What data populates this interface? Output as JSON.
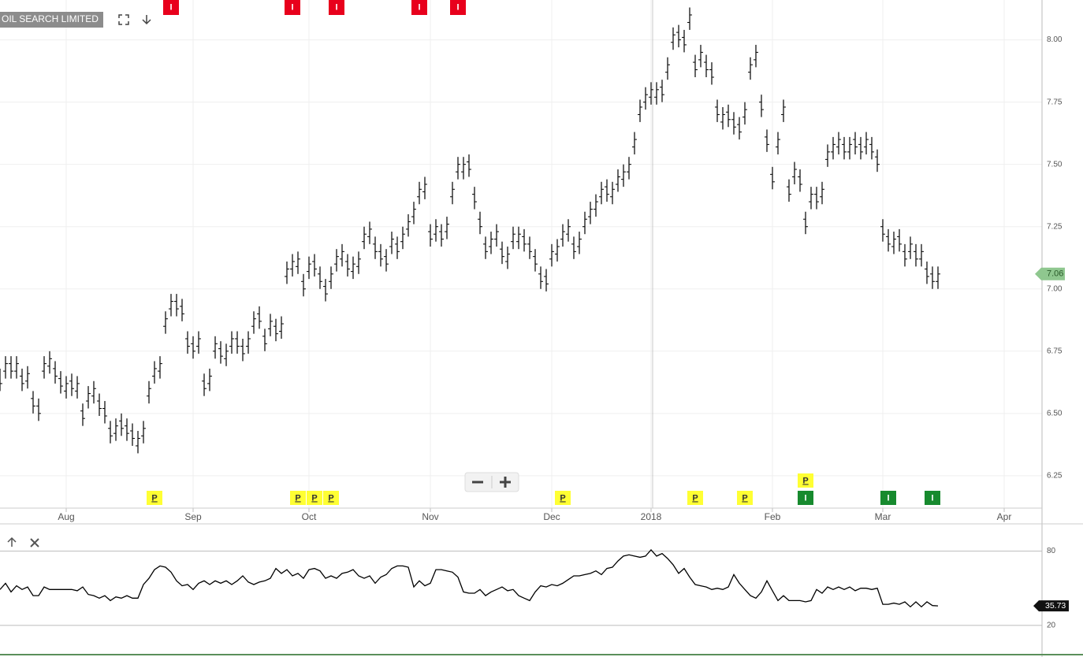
{
  "chart_data": [
    {
      "type": "ohlc",
      "title": "OIL SEARCH LIMITED",
      "color": "#000000",
      "grid": true,
      "xlim": [
        0,
        189
      ],
      "ylim": [
        6.12,
        8.16
      ],
      "xticks": [
        {
          "value": 12,
          "label": "Aug"
        },
        {
          "value": 35,
          "label": "Sep"
        },
        {
          "value": 56,
          "label": "Oct"
        },
        {
          "value": 78,
          "label": "Nov"
        },
        {
          "value": 100,
          "label": "Dec"
        },
        {
          "value": 118,
          "label": "2018"
        },
        {
          "value": 140,
          "label": "Feb"
        },
        {
          "value": 160,
          "label": "Mar"
        },
        {
          "value": 182,
          "label": "Apr"
        }
      ],
      "yticks": [
        6.25,
        {
          "value": 6.5,
          "label": "6.50"
        },
        6.75,
        {
          "value": 7,
          "label": "7.00"
        },
        7.25,
        {
          "value": 7.5,
          "label": "7.50"
        },
        7.75,
        {
          "value": 8,
          "label": "8.00"
        }
      ],
      "open": [
        6.65,
        6.67,
        6.7,
        6.67,
        6.65,
        6.63,
        6.56,
        6.53,
        6.67,
        6.69,
        6.68,
        6.64,
        6.59,
        6.63,
        6.59,
        6.51,
        6.55,
        6.57,
        6.55,
        6.52,
        6.44,
        6.42,
        6.47,
        6.45,
        6.43,
        6.37,
        6.41,
        6.57,
        6.65,
        6.67,
        6.85,
        6.92,
        6.95,
        6.93,
        6.8,
        6.78,
        6.77,
        6.63,
        6.62,
        6.75,
        6.76,
        6.72,
        6.77,
        6.8,
        6.77,
        6.77,
        6.85,
        6.9,
        6.81,
        6.84,
        6.85,
        6.83,
        7.05,
        7.08,
        7.09,
        7.03,
        7.07,
        7.11,
        7.06,
        7.01,
        7.03,
        7.1,
        7.12,
        7.11,
        7.07,
        7.09,
        7.19,
        7.21,
        7.18,
        7.15,
        7.13,
        7.17,
        7.18,
        7.19,
        7.24,
        7.29,
        7.37,
        7.39,
        7.23,
        7.22,
        7.23,
        7.23,
        7.37,
        7.47,
        7.47,
        7.51,
        7.38,
        7.28,
        7.18,
        7.17,
        7.2,
        7.16,
        7.11,
        7.19,
        7.19,
        7.21,
        7.18,
        7.13,
        7.06,
        7.05,
        7.12,
        7.14,
        7.2,
        7.22,
        7.18,
        7.17,
        7.25,
        7.29,
        7.32,
        7.37,
        7.41,
        7.37,
        7.42,
        7.44,
        7.47,
        7.57,
        7.7,
        7.75,
        7.77,
        7.77,
        7.81,
        7.87,
        7.99,
        8.03,
        8.01,
        8.07,
        7.91,
        7.92,
        7.91,
        7.88,
        7.73,
        7.67,
        7.71,
        7.68,
        7.66,
        7.69,
        7.87,
        7.92,
        7.75,
        7.61,
        7.46,
        7.57,
        7.7,
        7.41,
        7.45,
        7.45,
        7.28,
        7.35,
        7.38,
        7.37,
        7.52,
        7.55,
        7.57,
        7.58,
        7.55,
        7.6,
        7.58,
        7.57,
        7.58,
        7.53,
        7.25,
        7.21,
        7.17,
        7.21,
        7.15,
        7.15,
        7.15,
        7.12,
        7.08,
        7.06,
        7.03
      ],
      "high": [
        6.68,
        6.73,
        6.73,
        6.73,
        6.68,
        6.69,
        6.59,
        6.56,
        6.73,
        6.75,
        6.71,
        6.67,
        6.65,
        6.66,
        6.65,
        6.54,
        6.61,
        6.63,
        6.58,
        6.55,
        6.47,
        6.48,
        6.5,
        6.48,
        6.46,
        6.43,
        6.47,
        6.63,
        6.71,
        6.73,
        6.91,
        6.98,
        6.98,
        6.96,
        6.83,
        6.81,
        6.83,
        6.66,
        6.68,
        6.81,
        6.79,
        6.78,
        6.83,
        6.83,
        6.8,
        6.83,
        6.91,
        6.93,
        6.84,
        6.9,
        6.88,
        6.89,
        7.11,
        7.14,
        7.15,
        7.06,
        7.13,
        7.14,
        7.09,
        7.04,
        7.09,
        7.16,
        7.18,
        7.14,
        7.13,
        7.15,
        7.25,
        7.27,
        7.21,
        7.18,
        7.16,
        7.23,
        7.21,
        7.25,
        7.3,
        7.35,
        7.43,
        7.45,
        7.26,
        7.28,
        7.26,
        7.29,
        7.43,
        7.53,
        7.53,
        7.54,
        7.41,
        7.31,
        7.21,
        7.23,
        7.26,
        7.19,
        7.17,
        7.25,
        7.25,
        7.24,
        7.21,
        7.16,
        7.09,
        7.08,
        7.18,
        7.2,
        7.26,
        7.28,
        7.21,
        7.23,
        7.31,
        7.35,
        7.38,
        7.43,
        7.44,
        7.43,
        7.48,
        7.5,
        7.53,
        7.63,
        7.76,
        7.81,
        7.83,
        7.83,
        7.84,
        7.93,
        8.05,
        8.06,
        8.04,
        8.13,
        7.94,
        7.98,
        7.94,
        7.91,
        7.76,
        7.73,
        7.74,
        7.71,
        7.69,
        7.75,
        7.93,
        7.98,
        7.78,
        7.64,
        7.49,
        7.63,
        7.76,
        7.44,
        7.51,
        7.48,
        7.31,
        7.41,
        7.41,
        7.43,
        7.58,
        7.61,
        7.63,
        7.61,
        7.61,
        7.63,
        7.61,
        7.63,
        7.61,
        7.56,
        7.28,
        7.24,
        7.23,
        7.24,
        7.18,
        7.21,
        7.18,
        7.18,
        7.11,
        7.09,
        7.09
      ],
      "low": [
        6.59,
        6.64,
        6.64,
        6.64,
        6.59,
        6.6,
        6.5,
        6.47,
        6.64,
        6.66,
        6.62,
        6.58,
        6.56,
        6.57,
        6.56,
        6.45,
        6.52,
        6.54,
        6.49,
        6.46,
        6.38,
        6.39,
        6.41,
        6.39,
        6.37,
        6.34,
        6.38,
        6.54,
        6.62,
        6.64,
        6.82,
        6.89,
        6.89,
        6.87,
        6.74,
        6.72,
        6.74,
        6.57,
        6.59,
        6.72,
        6.7,
        6.69,
        6.74,
        6.74,
        6.71,
        6.74,
        6.82,
        6.84,
        6.75,
        6.81,
        6.79,
        6.8,
        7.02,
        7.05,
        7.06,
        6.97,
        7.04,
        7.05,
        7.0,
        6.95,
        7.0,
        7.07,
        7.09,
        7.05,
        7.04,
        7.06,
        7.16,
        7.18,
        7.12,
        7.09,
        7.07,
        7.14,
        7.12,
        7.16,
        7.21,
        7.26,
        7.34,
        7.36,
        7.17,
        7.19,
        7.17,
        7.2,
        7.34,
        7.44,
        7.44,
        7.45,
        7.32,
        7.22,
        7.12,
        7.14,
        7.17,
        7.1,
        7.08,
        7.16,
        7.16,
        7.15,
        7.12,
        7.07,
        7.0,
        6.99,
        7.09,
        7.11,
        7.17,
        7.19,
        7.12,
        7.14,
        7.22,
        7.26,
        7.29,
        7.34,
        7.35,
        7.34,
        7.39,
        7.41,
        7.44,
        7.54,
        7.67,
        7.72,
        7.74,
        7.74,
        7.75,
        7.84,
        7.96,
        7.97,
        7.95,
        8.04,
        7.85,
        7.89,
        7.85,
        7.82,
        7.67,
        7.64,
        7.65,
        7.62,
        7.6,
        7.66,
        7.84,
        7.89,
        7.69,
        7.55,
        7.4,
        7.54,
        7.67,
        7.35,
        7.42,
        7.39,
        7.22,
        7.32,
        7.32,
        7.34,
        7.49,
        7.52,
        7.54,
        7.52,
        7.52,
        7.54,
        7.52,
        7.54,
        7.52,
        7.47,
        7.19,
        7.15,
        7.14,
        7.15,
        7.09,
        7.12,
        7.09,
        7.09,
        7.02,
        7.0,
        7.0
      ],
      "close": [
        6.62,
        6.7,
        6.67,
        6.7,
        6.62,
        6.66,
        6.53,
        6.5,
        6.7,
        6.72,
        6.65,
        6.61,
        6.62,
        6.6,
        6.62,
        6.48,
        6.58,
        6.6,
        6.52,
        6.49,
        6.41,
        6.45,
        6.44,
        6.42,
        6.4,
        6.4,
        6.44,
        6.6,
        6.68,
        6.7,
        6.88,
        6.95,
        6.92,
        6.9,
        6.77,
        6.75,
        6.8,
        6.6,
        6.65,
        6.78,
        6.73,
        6.75,
        6.8,
        6.77,
        6.74,
        6.8,
        6.88,
        6.87,
        6.78,
        6.87,
        6.82,
        6.86,
        7.08,
        7.11,
        7.12,
        7.0,
        7.1,
        7.08,
        7.03,
        6.98,
        7.06,
        7.13,
        7.15,
        7.08,
        7.1,
        7.12,
        7.22,
        7.24,
        7.15,
        7.12,
        7.1,
        7.2,
        7.15,
        7.22,
        7.27,
        7.32,
        7.4,
        7.42,
        7.2,
        7.25,
        7.2,
        7.26,
        7.4,
        7.5,
        7.5,
        7.48,
        7.35,
        7.25,
        7.15,
        7.2,
        7.23,
        7.13,
        7.14,
        7.22,
        7.22,
        7.18,
        7.15,
        7.1,
        7.03,
        7.02,
        7.15,
        7.17,
        7.23,
        7.25,
        7.15,
        7.2,
        7.28,
        7.32,
        7.35,
        7.4,
        7.38,
        7.4,
        7.45,
        7.47,
        7.5,
        7.6,
        7.73,
        7.78,
        7.8,
        7.8,
        7.78,
        7.9,
        8.02,
        8.0,
        7.98,
        8.1,
        7.88,
        7.95,
        7.88,
        7.85,
        7.7,
        7.7,
        7.68,
        7.65,
        7.63,
        7.72,
        7.9,
        7.95,
        7.72,
        7.58,
        7.43,
        7.6,
        7.73,
        7.38,
        7.48,
        7.42,
        7.25,
        7.38,
        7.35,
        7.4,
        7.55,
        7.58,
        7.6,
        7.55,
        7.58,
        7.57,
        7.55,
        7.6,
        7.55,
        7.5,
        7.22,
        7.18,
        7.2,
        7.18,
        7.12,
        7.18,
        7.12,
        7.15,
        7.05,
        7.03,
        7.06
      ],
      "last_color": "#8fc78f",
      "events": [
        {
          "label": "I",
          "x": 31,
          "color": "#e8001c"
        },
        {
          "label": "I",
          "x": 53,
          "color": "#e8001c"
        },
        {
          "label": "I",
          "x": 61,
          "color": "#e8001c"
        },
        {
          "label": "I",
          "x": 76,
          "color": "#e8001c"
        },
        {
          "label": "I",
          "x": 83,
          "color": "#e8001c"
        },
        {
          "label": "P",
          "x": 28,
          "color": "#ffff33"
        },
        {
          "label": "P",
          "x": 54,
          "color": "#ffff33"
        },
        {
          "label": "P",
          "x": 57,
          "color": "#ffff33"
        },
        {
          "label": "P",
          "x": 60,
          "color": "#ffff33"
        },
        {
          "label": "P",
          "x": 102,
          "color": "#ffff33"
        },
        {
          "label": "P",
          "x": 126,
          "color": "#ffff33"
        },
        {
          "label": "P",
          "x": 135,
          "color": "#ffff33"
        },
        {
          "label": "I",
          "x": 146,
          "color": "#178a2e"
        },
        {
          "label": "P",
          "x": 146,
          "color": "#ffff33"
        },
        {
          "label": "I",
          "x": 161,
          "color": "#178a2e"
        },
        {
          "label": "I",
          "x": 169,
          "color": "#178a2e"
        }
      ]
    },
    {
      "type": "line",
      "color": "#000000",
      "xlim": [
        0,
        189
      ],
      "ylim": [
        -3,
        102
      ],
      "yticks": [
        20,
        80
      ],
      "values": [
        49,
        54,
        47,
        52,
        49,
        51,
        44,
        44,
        51,
        49,
        49,
        49,
        49,
        49,
        48,
        51,
        45,
        44,
        42,
        44,
        40,
        43,
        42,
        44,
        42,
        42,
        53,
        58,
        65,
        68,
        67,
        63,
        56,
        52,
        53,
        49,
        54,
        56,
        53,
        56,
        54,
        56,
        53,
        56,
        60,
        55,
        53,
        55,
        56,
        58,
        66,
        62,
        65,
        60,
        62,
        58,
        65,
        66,
        64,
        58,
        60,
        58,
        62,
        63,
        65,
        60,
        58,
        60,
        54,
        59,
        61,
        66,
        68,
        68,
        67,
        51,
        56,
        52,
        54,
        65,
        65,
        64,
        63,
        59,
        47,
        46,
        46,
        49,
        44,
        47,
        49,
        51,
        48,
        49,
        44,
        42,
        40,
        47,
        52,
        51,
        53,
        52,
        54,
        57,
        60,
        60,
        61,
        62,
        64,
        61,
        66,
        67,
        72,
        76,
        77,
        76,
        75,
        76,
        81,
        76,
        78,
        74,
        69,
        62,
        66,
        59,
        53,
        52,
        51,
        49,
        50,
        49,
        51,
        61,
        54,
        49,
        44,
        42,
        47,
        56,
        48,
        40,
        44,
        40,
        40,
        40,
        39,
        40,
        49,
        46,
        51,
        49,
        51,
        49,
        51,
        48,
        50,
        50,
        49,
        50,
        37,
        37,
        38,
        37,
        39,
        35,
        39,
        35,
        39,
        36,
        35.73
      ]
    }
  ]
}
